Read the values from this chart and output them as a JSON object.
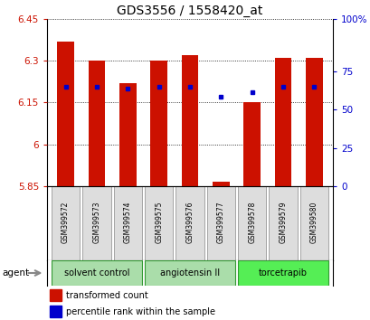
{
  "title": "GDS3556 / 1558420_at",
  "samples": [
    "GSM399572",
    "GSM399573",
    "GSM399574",
    "GSM399575",
    "GSM399576",
    "GSM399577",
    "GSM399578",
    "GSM399579",
    "GSM399580"
  ],
  "bar_values": [
    6.37,
    6.3,
    6.22,
    6.3,
    6.32,
    5.865,
    6.15,
    6.31,
    6.31
  ],
  "percentile_values": [
    6.207,
    6.207,
    6.2,
    6.207,
    6.207,
    6.172,
    6.188,
    6.207,
    6.207
  ],
  "bar_bottom": 5.85,
  "ymin": 5.85,
  "ymax": 6.45,
  "yticks": [
    5.85,
    6.0,
    6.15,
    6.3,
    6.45
  ],
  "ytick_labels": [
    "5.85",
    "6",
    "6.15",
    "6.3",
    "6.45"
  ],
  "right_yticks_val": [
    5.85,
    5.9875,
    6.125,
    6.2625,
    6.45
  ],
  "right_ytick_labels": [
    "0",
    "25",
    "50",
    "75",
    "100%"
  ],
  "bar_color": "#CC1100",
  "percentile_color": "#0000CC",
  "group_ranges": [
    {
      "start": 0,
      "end": 2,
      "label": "solvent control",
      "color": "#AADDAA"
    },
    {
      "start": 3,
      "end": 5,
      "label": "angiotensin II",
      "color": "#AADDAA"
    },
    {
      "start": 6,
      "end": 8,
      "label": "torcetrapib",
      "color": "#55EE55"
    }
  ],
  "legend_items": [
    {
      "label": "transformed count",
      "color": "#CC1100"
    },
    {
      "label": "percentile rank within the sample",
      "color": "#0000CC"
    }
  ],
  "bar_width": 0.55,
  "title_fontsize": 10
}
